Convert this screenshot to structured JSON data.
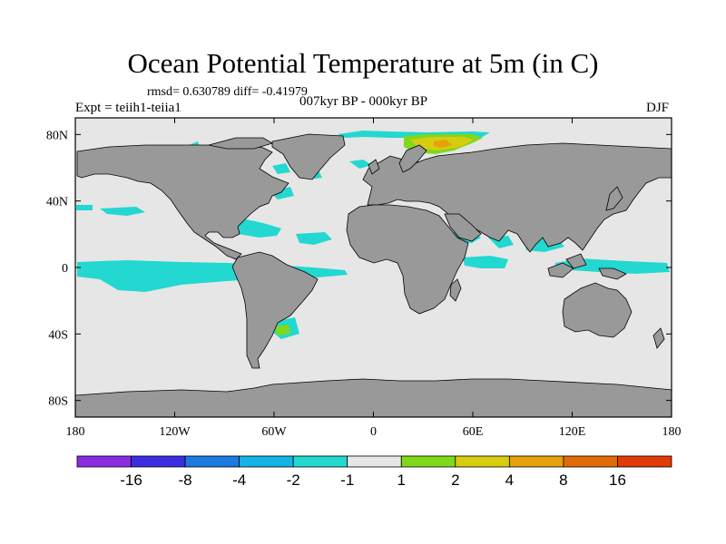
{
  "title": "Ocean Potential Temperature at 5m (in C)",
  "stats": "rmsd= 0.630789 diff= -0.41979",
  "period": "007kyr BP - 000kyr BP",
  "experiment": "Expt = teiih1-teiia1",
  "season": "DJF",
  "map": {
    "projection": "cylindrical equidistant",
    "lon_range": [
      -180,
      180
    ],
    "lat_range": [
      -90,
      90
    ],
    "land_color": "#999999",
    "ocean_neutral_color": "#e6e6e6",
    "coastline_color": "#000000",
    "lon_ticks": [
      {
        "value": -180,
        "label": "180"
      },
      {
        "value": -120,
        "label": "120W"
      },
      {
        "value": -60,
        "label": "60W"
      },
      {
        "value": 0,
        "label": "0"
      },
      {
        "value": 60,
        "label": "60E"
      },
      {
        "value": 120,
        "label": "120E"
      },
      {
        "value": 180,
        "label": "180"
      }
    ],
    "lat_ticks": [
      {
        "value": 80,
        "label": "80N"
      },
      {
        "value": 40,
        "label": "40N"
      },
      {
        "value": 0,
        "label": "0"
      },
      {
        "value": -40,
        "label": "40S"
      },
      {
        "value": -80,
        "label": "80S"
      }
    ]
  },
  "colorbar": {
    "colors": [
      "#8a2be2",
      "#3a2ee0",
      "#1a7ae0",
      "#12b4e6",
      "#22d8d0",
      "#e6e6e6",
      "#7fd81a",
      "#d6cc10",
      "#e6a00a",
      "#e36a08",
      "#e03a08"
    ],
    "labels": [
      "-16",
      "-8",
      "-4",
      "-2",
      "-1",
      "1",
      "2",
      "4",
      "8",
      "16"
    ]
  }
}
